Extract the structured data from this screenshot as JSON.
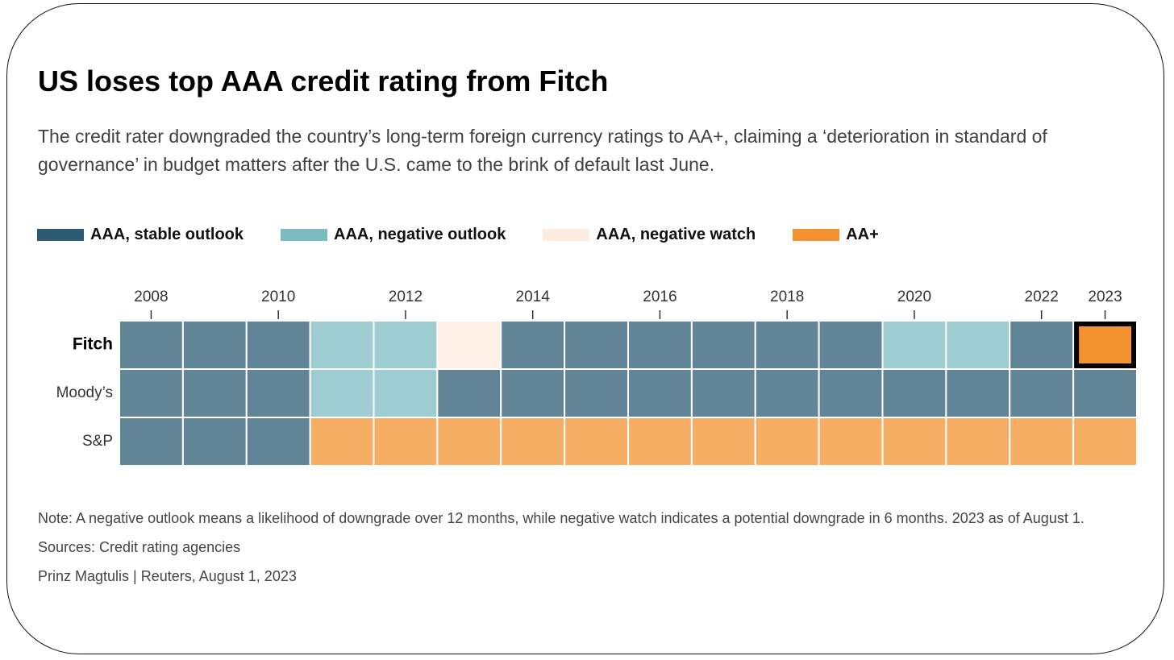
{
  "chart_data": {
    "type": "heatmap",
    "title": "US loses top AAA credit rating from Fitch",
    "subtitle": "The credit rater downgraded the country’s long-term foreign currency ratings to AA+, claiming a ‘deterioration in standard of governance’ in budget matters after the U.S. came to the brink of default last June.",
    "legend": [
      {
        "name": "AAA, stable outlook",
        "color": "#2c5b73"
      },
      {
        "name": "AAA, negative outlook",
        "color": "#7cbcc0"
      },
      {
        "name": "AAA, negative watch",
        "color": "#fdece0"
      },
      {
        "name": "AA+",
        "color": "#f39330"
      }
    ],
    "x": [
      2008,
      2009,
      2010,
      2011,
      2012,
      2013,
      2014,
      2015,
      2016,
      2017,
      2018,
      2019,
      2020,
      2021,
      2022,
      2023
    ],
    "xticks": [
      2008,
      2010,
      2012,
      2014,
      2016,
      2018,
      2020,
      2022,
      2023
    ],
    "rows": [
      {
        "name": "Fitch",
        "values": [
          "AAA, stable outlook",
          "AAA, stable outlook",
          "AAA, stable outlook",
          "AAA, negative outlook",
          "AAA, negative outlook",
          "AAA, negative watch",
          "AAA, stable outlook",
          "AAA, stable outlook",
          "AAA, stable outlook",
          "AAA, stable outlook",
          "AAA, stable outlook",
          "AAA, stable outlook",
          "AAA, negative outlook",
          "AAA, negative outlook",
          "AAA, stable outlook",
          "AA+"
        ]
      },
      {
        "name": "Moody’s",
        "values": [
          "AAA, stable outlook",
          "AAA, stable outlook",
          "AAA, stable outlook",
          "AAA, negative outlook",
          "AAA, negative outlook",
          "AAA, stable outlook",
          "AAA, stable outlook",
          "AAA, stable outlook",
          "AAA, stable outlook",
          "AAA, stable outlook",
          "AAA, stable outlook",
          "AAA, stable outlook",
          "AAA, stable outlook",
          "AAA, stable outlook",
          "AAA, stable outlook",
          "AAA, stable outlook"
        ]
      },
      {
        "name": "S&P",
        "values": [
          "AAA, stable outlook",
          "AAA, stable outlook",
          "AAA, stable outlook",
          "AA+",
          "AA+",
          "AA+",
          "AA+",
          "AA+",
          "AA+",
          "AA+",
          "AA+",
          "AA+",
          "AA+",
          "AA+",
          "AA+",
          "AA+"
        ]
      }
    ],
    "highlight": {
      "row": "Fitch",
      "x": 2023
    },
    "notes": [
      "Note: A negative outlook means a likelihood of downgrade over 12 months, while negative watch indicates a potential downgrade in 6 months. 2023 as of August 1.",
      "Sources: Credit rating agencies",
      "Prinz Magtulis |  Reuters, August 1, 2023"
    ]
  }
}
